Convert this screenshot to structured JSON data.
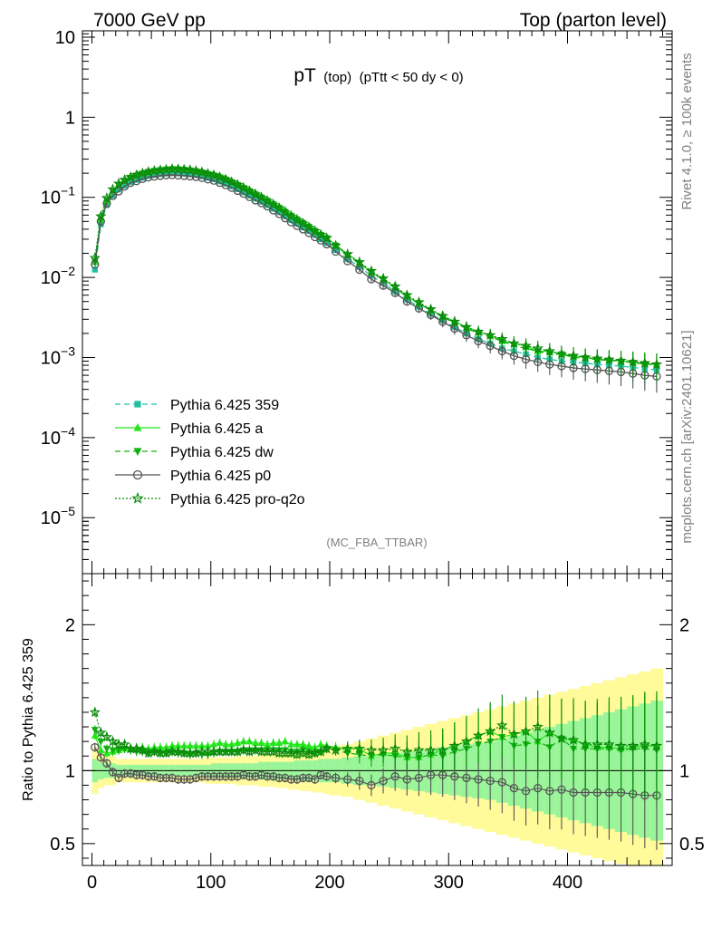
{
  "header": {
    "energy_label": "7000 GeV pp",
    "process_label": "Top (parton level)"
  },
  "side_labels": {
    "rivet": "Rivet 4.1.0, ≥ 100k events",
    "mcplots": "mcplots.cern.ch [arXiv:2401.10621]"
  },
  "analysis_label": "(MC_FBA_TTBAR)",
  "colors": {
    "p359": "#20c0a0",
    "a": "#22e61a",
    "dw": "#10b010",
    "p0": "#555555",
    "proq2o": "#0a8a0a",
    "band_yellow": "#fffa9a",
    "band_green": "#9af59a"
  },
  "chart_data": [
    {
      "type": "line",
      "title": "pT (top) (pTtt < 50 dy < 0)",
      "title_parts": {
        "main": "pT",
        "sub1": "(top)",
        "sub2": "(pTtt < 50 dy < 0)"
      },
      "xlabel": "",
      "ylabel": "",
      "yscale": "log",
      "xlim": [
        -8,
        488
      ],
      "ylim": [
        2e-06,
        12
      ],
      "y_ticks": [
        {
          "value": 10,
          "label": "10"
        },
        {
          "value": 1,
          "label": "1"
        },
        {
          "value": 0.1,
          "base": "10",
          "exp": "−1"
        },
        {
          "value": 0.01,
          "base": "10",
          "exp": "−2"
        },
        {
          "value": 0.001,
          "base": "10",
          "exp": "−3"
        },
        {
          "value": 0.0001,
          "base": "10",
          "exp": "−4"
        },
        {
          "value": 1e-05,
          "base": "10",
          "exp": "−5"
        }
      ],
      "legend_position": "bottom-left",
      "x_reference": [
        2.5,
        7.5,
        12.5,
        17.5,
        22.5,
        27.5,
        32.5,
        37.5,
        42.5,
        47.5,
        52.5,
        57.5,
        62.5,
        67.5,
        72.5,
        77.5,
        82.5,
        87.5,
        92.5,
        97.5,
        102.5,
        107.5,
        112.5,
        117.5,
        122.5,
        127.5,
        132.5,
        137.5,
        142.5,
        147.5,
        152.5,
        157.5,
        162.5,
        167.5,
        172.5,
        177.5,
        182.5,
        187.5,
        192.5,
        197.5,
        205,
        215,
        225,
        235,
        245,
        255,
        265,
        275,
        285,
        295,
        305,
        315,
        325,
        335,
        345,
        355,
        365,
        375,
        385,
        395,
        405,
        415,
        425,
        435,
        445,
        455,
        465,
        475
      ],
      "reference_values": [
        0.0125,
        0.046,
        0.08,
        0.105,
        0.125,
        0.14,
        0.155,
        0.165,
        0.175,
        0.185,
        0.19,
        0.195,
        0.198,
        0.2,
        0.2,
        0.198,
        0.195,
        0.19,
        0.183,
        0.175,
        0.168,
        0.158,
        0.148,
        0.137,
        0.126,
        0.115,
        0.105,
        0.096,
        0.088,
        0.08,
        0.072,
        0.065,
        0.058,
        0.052,
        0.047,
        0.042,
        0.038,
        0.034,
        0.03,
        0.027,
        0.022,
        0.017,
        0.0135,
        0.0105,
        0.0085,
        0.0067,
        0.0053,
        0.0043,
        0.0035,
        0.0029,
        0.0024,
        0.002,
        0.0017,
        0.0015,
        0.0013,
        0.0012,
        0.0011,
        0.001,
        0.00095,
        0.0009,
        0.00087,
        0.00085,
        0.00082,
        0.0008,
        0.00078,
        0.00075,
        0.00072,
        0.0007
      ],
      "series": [
        {
          "name": "Pythia 6.425 359",
          "color_key": "p359",
          "marker": "square",
          "dash": "6,4",
          "values": [
            0.0125,
            0.046,
            0.08,
            0.105,
            0.125,
            0.14,
            0.155,
            0.165,
            0.175,
            0.185,
            0.19,
            0.195,
            0.198,
            0.2,
            0.2,
            0.198,
            0.195,
            0.19,
            0.183,
            0.175,
            0.168,
            0.158,
            0.148,
            0.137,
            0.126,
            0.115,
            0.105,
            0.096,
            0.088,
            0.08,
            0.072,
            0.065,
            0.058,
            0.052,
            0.047,
            0.042,
            0.038,
            0.034,
            0.03,
            0.027,
            0.022,
            0.017,
            0.0135,
            0.0105,
            0.0085,
            0.0067,
            0.0053,
            0.0043,
            0.0035,
            0.0029,
            0.0024,
            0.002,
            0.0017,
            0.0015,
            0.0013,
            0.0012,
            0.0011,
            0.001,
            0.00095,
            0.0009,
            0.00087,
            0.00085,
            0.00082,
            0.0008,
            0.00078,
            0.00075,
            0.00072,
            0.0007
          ]
        },
        {
          "name": "Pythia 6.425 a",
          "color_key": "a",
          "marker": "triangle-up",
          "dash": "",
          "values": [
            0.0155,
            0.0525,
            0.09,
            0.1185,
            0.1425,
            0.1615,
            0.1785,
            0.1915,
            0.2025,
            0.2135,
            0.2215,
            0.2265,
            0.2295,
            0.2335,
            0.2335,
            0.2325,
            0.2275,
            0.2225,
            0.2135,
            0.2045,
            0.1975,
            0.1875,
            0.1745,
            0.1615,
            0.1495,
            0.1375,
            0.1255,
            0.1145,
            0.1045,
            0.0945,
            0.0855,
            0.0775,
            0.0695,
            0.0615,
            0.0555,
            0.0495,
            0.0445,
            0.0395,
            0.0355,
            0.0315,
            0.0255,
            0.0195,
            0.0155,
            0.0115,
            0.0095,
            0.0075,
            0.0058,
            0.0047,
            0.0039,
            0.0033,
            0.0028,
            0.0024,
            0.0021,
            0.0019,
            0.0016,
            0.0015,
            0.0014,
            0.0012,
            0.0012,
            0.0011,
            0.00105,
            0.001,
            0.00095,
            0.00093,
            0.0009,
            0.00087,
            0.00084,
            0.00082
          ]
        },
        {
          "name": "Pythia 6.425 dw",
          "color_key": "dw",
          "marker": "triangle-down",
          "dash": "6,4",
          "values": [
            0.016,
            0.055,
            0.092,
            0.12,
            0.143,
            0.161,
            0.176,
            0.187,
            0.198,
            0.208,
            0.214,
            0.219,
            0.222,
            0.225,
            0.224,
            0.221,
            0.217,
            0.212,
            0.204,
            0.195,
            0.188,
            0.178,
            0.167,
            0.155,
            0.143,
            0.131,
            0.12,
            0.109,
            0.1,
            0.091,
            0.082,
            0.074,
            0.066,
            0.059,
            0.053,
            0.048,
            0.043,
            0.038,
            0.034,
            0.031,
            0.025,
            0.019,
            0.015,
            0.0115,
            0.0094,
            0.0074,
            0.0058,
            0.0047,
            0.0039,
            0.0032,
            0.0027,
            0.0023,
            0.002,
            0.0018,
            0.0016,
            0.0014,
            0.0013,
            0.0012,
            0.0011,
            0.0011,
            0.001,
            0.00098,
            0.00094,
            0.00092,
            0.00089,
            0.00086,
            0.00083,
            0.0008
          ]
        },
        {
          "name": "Pythia 6.425 p0",
          "color_key": "p0",
          "marker": "circle-open",
          "dash": "",
          "values": [
            0.0145,
            0.05,
            0.084,
            0.104,
            0.119,
            0.137,
            0.152,
            0.16,
            0.17,
            0.178,
            0.182,
            0.186,
            0.189,
            0.19,
            0.188,
            0.186,
            0.183,
            0.18,
            0.175,
            0.168,
            0.162,
            0.152,
            0.142,
            0.132,
            0.121,
            0.111,
            0.101,
            0.092,
            0.085,
            0.077,
            0.069,
            0.062,
            0.055,
            0.049,
            0.044,
            0.04,
            0.036,
            0.032,
            0.029,
            0.026,
            0.021,
            0.016,
            0.0125,
            0.0095,
            0.0079,
            0.0064,
            0.005,
            0.0041,
            0.0034,
            0.0028,
            0.0023,
            0.0019,
            0.0016,
            0.0014,
            0.0012,
            0.00105,
            0.00095,
            0.00088,
            0.00082,
            0.00078,
            0.00074,
            0.00072,
            0.0007,
            0.00068,
            0.00066,
            0.00063,
            0.0006,
            0.00058
          ]
        },
        {
          "name": "Pythia 6.425 pro-q2o",
          "color_key": "proq2o",
          "marker": "star-open",
          "dash": "2,2",
          "values": [
            0.0175,
            0.058,
            0.098,
            0.126,
            0.148,
            0.165,
            0.179,
            0.19,
            0.199,
            0.208,
            0.214,
            0.218,
            0.222,
            0.225,
            0.225,
            0.222,
            0.218,
            0.213,
            0.206,
            0.197,
            0.189,
            0.178,
            0.167,
            0.155,
            0.143,
            0.131,
            0.119,
            0.109,
            0.099,
            0.09,
            0.081,
            0.073,
            0.065,
            0.058,
            0.052,
            0.047,
            0.042,
            0.038,
            0.034,
            0.031,
            0.025,
            0.0195,
            0.0155,
            0.012,
            0.0097,
            0.0077,
            0.006,
            0.0049,
            0.004,
            0.0033,
            0.0028,
            0.0024,
            0.0021,
            0.0019,
            0.0017,
            0.0015,
            0.0014,
            0.0013,
            0.0012,
            0.0011,
            0.00105,
            0.001,
            0.00097,
            0.00094,
            0.00091,
            0.00088,
            0.00085,
            0.00082
          ]
        }
      ]
    },
    {
      "type": "line",
      "title": "",
      "xlabel": "",
      "ylabel": "Ratio to Pythia 6.425 359",
      "yscale": "linear",
      "xlim": [
        -8,
        488
      ],
      "ylim": [
        0.35,
        2.35
      ],
      "x_ticks": [
        0,
        100,
        200,
        300,
        400
      ],
      "y_ticks": [
        0.5,
        1,
        2
      ],
      "y_tick_labels": [
        "0.5",
        "1",
        "2"
      ],
      "reference_line": 1,
      "band_half_width_stat": [
        0.08,
        0.06,
        0.05,
        0.05,
        0.04,
        0.04,
        0.04,
        0.04,
        0.04,
        0.04,
        0.04,
        0.04,
        0.04,
        0.04,
        0.04,
        0.04,
        0.04,
        0.04,
        0.04,
        0.04,
        0.05,
        0.05,
        0.05,
        0.05,
        0.05,
        0.05,
        0.05,
        0.05,
        0.06,
        0.06,
        0.06,
        0.06,
        0.06,
        0.06,
        0.07,
        0.07,
        0.07,
        0.07,
        0.08,
        0.08,
        0.08,
        0.09,
        0.1,
        0.1,
        0.11,
        0.12,
        0.13,
        0.14,
        0.15,
        0.16,
        0.17,
        0.18,
        0.19,
        0.2,
        0.22,
        0.24,
        0.26,
        0.28,
        0.3,
        0.32,
        0.34,
        0.36,
        0.38,
        0.4,
        0.42,
        0.44,
        0.46,
        0.48
      ],
      "band_half_width_total": [
        0.16,
        0.12,
        0.1,
        0.1,
        0.08,
        0.08,
        0.08,
        0.08,
        0.08,
        0.08,
        0.08,
        0.08,
        0.08,
        0.08,
        0.08,
        0.08,
        0.08,
        0.08,
        0.08,
        0.09,
        0.09,
        0.09,
        0.09,
        0.09,
        0.1,
        0.1,
        0.1,
        0.1,
        0.11,
        0.11,
        0.11,
        0.12,
        0.12,
        0.13,
        0.13,
        0.14,
        0.14,
        0.15,
        0.15,
        0.16,
        0.17,
        0.18,
        0.2,
        0.22,
        0.24,
        0.26,
        0.28,
        0.3,
        0.32,
        0.34,
        0.36,
        0.38,
        0.4,
        0.42,
        0.44,
        0.46,
        0.48,
        0.5,
        0.52,
        0.54,
        0.56,
        0.58,
        0.6,
        0.62,
        0.64,
        0.66,
        0.68,
        0.7
      ],
      "series": [
        {
          "name": "Pythia 6.425 a",
          "color_key": "a",
          "marker": "triangle-up",
          "dash": "",
          "values": [
            1.24,
            1.14,
            1.12,
            1.13,
            1.14,
            1.15,
            1.15,
            1.16,
            1.16,
            1.15,
            1.16,
            1.16,
            1.16,
            1.17,
            1.17,
            1.17,
            1.17,
            1.17,
            1.17,
            1.17,
            1.18,
            1.19,
            1.18,
            1.18,
            1.19,
            1.2,
            1.2,
            1.19,
            1.19,
            1.18,
            1.19,
            1.19,
            1.2,
            1.18,
            1.18,
            1.18,
            1.17,
            1.16,
            1.18,
            1.17,
            1.16,
            1.15,
            1.15,
            1.1,
            1.12,
            1.12,
            1.09,
            1.09,
            1.11,
            1.14,
            1.17,
            1.2,
            1.24,
            1.27,
            1.23,
            1.25,
            1.27,
            1.2,
            1.26,
            1.22,
            1.21,
            1.18,
            1.16,
            1.16,
            1.15,
            1.16,
            1.17,
            1.17
          ]
        },
        {
          "name": "Pythia 6.425 dw",
          "color_key": "dw",
          "marker": "triangle-down",
          "dash": "6,4",
          "values": [
            1.28,
            1.2,
            1.15,
            1.14,
            1.14,
            1.15,
            1.14,
            1.13,
            1.13,
            1.12,
            1.13,
            1.12,
            1.12,
            1.13,
            1.12,
            1.12,
            1.11,
            1.12,
            1.11,
            1.11,
            1.12,
            1.13,
            1.13,
            1.13,
            1.13,
            1.14,
            1.14,
            1.14,
            1.14,
            1.14,
            1.14,
            1.14,
            1.14,
            1.13,
            1.13,
            1.14,
            1.13,
            1.12,
            1.13,
            1.15,
            1.14,
            1.12,
            1.11,
            1.1,
            1.11,
            1.1,
            1.09,
            1.09,
            1.11,
            1.1,
            1.13,
            1.15,
            1.18,
            1.2,
            1.23,
            1.17,
            1.18,
            1.2,
            1.16,
            1.22,
            1.15,
            1.15,
            1.15,
            1.15,
            1.14,
            1.15,
            1.15,
            1.14
          ]
        },
        {
          "name": "Pythia 6.425 p0",
          "color_key": "p0",
          "marker": "circle-open",
          "dash": "",
          "values": [
            1.16,
            1.09,
            1.05,
            0.99,
            0.95,
            0.98,
            0.98,
            0.97,
            0.97,
            0.96,
            0.96,
            0.95,
            0.95,
            0.95,
            0.94,
            0.94,
            0.94,
            0.95,
            0.96,
            0.96,
            0.96,
            0.96,
            0.96,
            0.96,
            0.96,
            0.97,
            0.96,
            0.96,
            0.97,
            0.96,
            0.96,
            0.95,
            0.95,
            0.94,
            0.94,
            0.95,
            0.95,
            0.94,
            0.97,
            0.96,
            0.95,
            0.94,
            0.93,
            0.9,
            0.93,
            0.96,
            0.94,
            0.95,
            0.97,
            0.97,
            0.96,
            0.95,
            0.94,
            0.93,
            0.92,
            0.88,
            0.86,
            0.88,
            0.86,
            0.87,
            0.85,
            0.85,
            0.85,
            0.85,
            0.85,
            0.84,
            0.83,
            0.83
          ]
        },
        {
          "name": "Pythia 6.425 pro-q2o",
          "color_key": "proq2o",
          "marker": "star-open",
          "dash": "2,2",
          "values": [
            1.4,
            1.26,
            1.23,
            1.2,
            1.18,
            1.18,
            1.15,
            1.15,
            1.14,
            1.12,
            1.13,
            1.12,
            1.12,
            1.13,
            1.13,
            1.12,
            1.12,
            1.12,
            1.13,
            1.13,
            1.13,
            1.13,
            1.13,
            1.13,
            1.13,
            1.14,
            1.13,
            1.14,
            1.13,
            1.13,
            1.13,
            1.12,
            1.12,
            1.12,
            1.11,
            1.12,
            1.11,
            1.12,
            1.13,
            1.15,
            1.14,
            1.15,
            1.15,
            1.14,
            1.14,
            1.15,
            1.13,
            1.14,
            1.14,
            1.14,
            1.17,
            1.2,
            1.24,
            1.27,
            1.31,
            1.25,
            1.27,
            1.3,
            1.26,
            1.22,
            1.21,
            1.18,
            1.18,
            1.18,
            1.17,
            1.17,
            1.18,
            1.17
          ]
        }
      ]
    }
  ],
  "legend": [
    {
      "label": "Pythia 6.425 359",
      "color_key": "p359",
      "marker": "square",
      "dash": "6,4"
    },
    {
      "label": "Pythia 6.425 a",
      "color_key": "a",
      "marker": "triangle-up",
      "dash": ""
    },
    {
      "label": "Pythia 6.425 dw",
      "color_key": "dw",
      "marker": "triangle-down",
      "dash": "6,4"
    },
    {
      "label": "Pythia 6.425 p0",
      "color_key": "p0",
      "marker": "circle-open",
      "dash": ""
    },
    {
      "label": "Pythia 6.425 pro-q2o",
      "color_key": "proq2o",
      "marker": "star-open",
      "dash": "2,2"
    }
  ]
}
